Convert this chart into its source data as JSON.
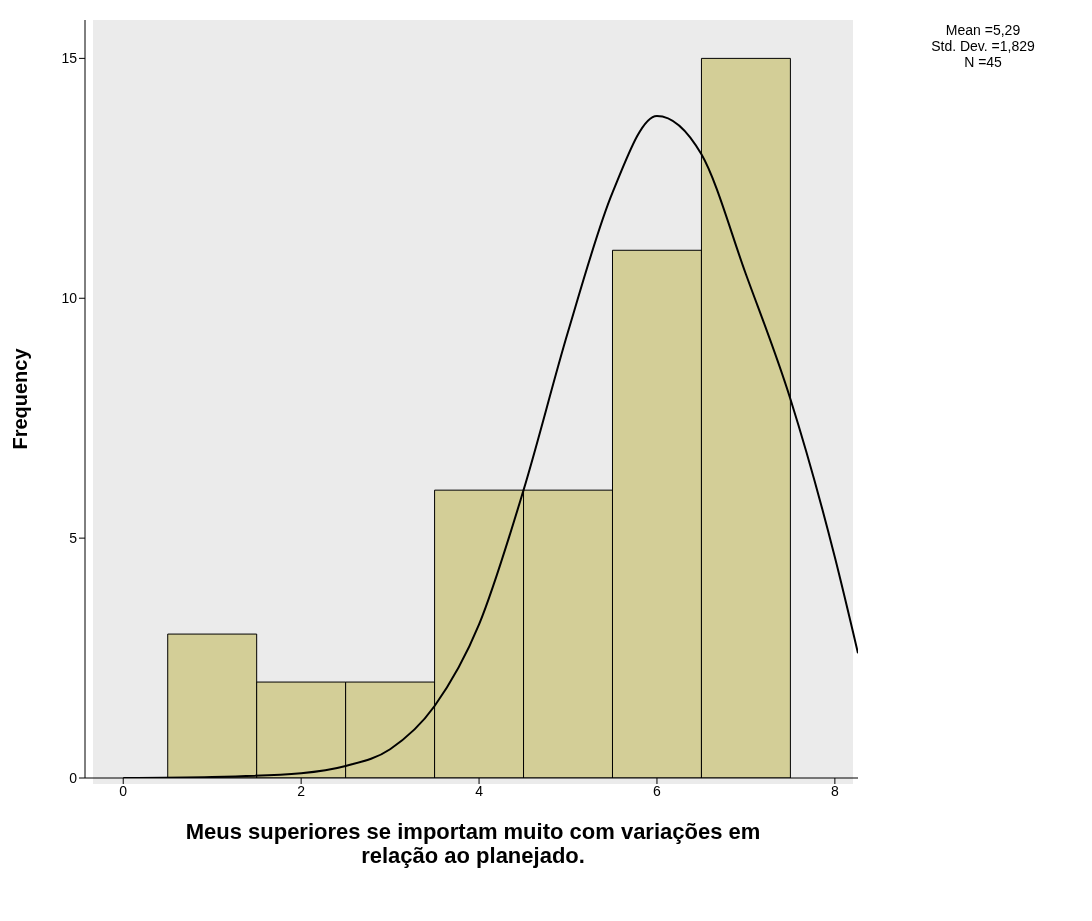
{
  "chart_data": {
    "type": "histogram",
    "xlabel": "Meus superiores se importam muito com variações em relação ao planejado.",
    "ylabel": "Frequency",
    "bins": [
      0.5,
      1.5,
      2.5,
      3.5,
      4.5,
      5.5,
      6.5,
      7.5
    ],
    "values": [
      3,
      2,
      2,
      6,
      6,
      11,
      15
    ],
    "color": "#d3ce97",
    "series": [
      {
        "type": "line",
        "color": "#000000",
        "x": [
          0,
          1,
          2,
          2.5,
          3,
          3.5,
          4,
          4.5,
          5,
          5.5,
          6,
          6.5,
          7,
          7.5,
          8,
          8.26
        ],
        "values": [
          0,
          0.02,
          0.1,
          0.25,
          0.6,
          1.5,
          3.2,
          6,
          9.3,
          12.2,
          13.8,
          13,
          10.5,
          7.9,
          4.6,
          2.6
        ]
      }
    ],
    "xlim": [
      -0.43,
      8.26
    ],
    "xticks": [
      0,
      2,
      4,
      6,
      8
    ],
    "ylim": [
      0,
      15.8
    ],
    "yticks": [
      0,
      5,
      10,
      15
    ],
    "marker": "none",
    "line_style": "solid",
    "annotations": [
      "Mean =5,29",
      "Std. Dev. =1,829",
      "N =45"
    ]
  }
}
